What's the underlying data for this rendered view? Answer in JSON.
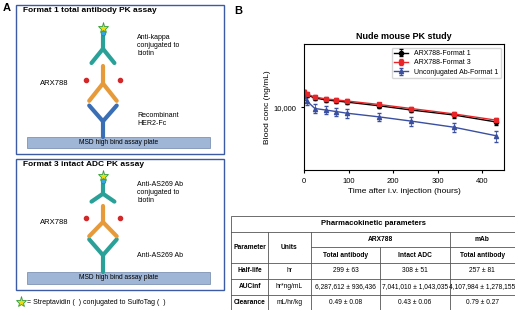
{
  "panel_labels": [
    "A",
    "B"
  ],
  "panel_a": {
    "format1": {
      "title": "Format 1 total antibody PK assay",
      "detection": "Anti-kappa\nconjugated to\nbiotin",
      "adc": "ARX788",
      "capture": "Recombinant\nHER2-Fc",
      "plate": "MSD high bind assay plate"
    },
    "format3": {
      "title": "Format 3 intact ADC PK assay",
      "detection": "Anti-AS269 Ab\nconjugated to\nbiotin",
      "adc": "ARX788",
      "capture": "Anti-AS269 Ab",
      "plate": "MSD high bind assay plate"
    },
    "legend_text": "= Streptavidin (  ) conjugated to SulfoTag (  )"
  },
  "chart_data": {
    "type": "line",
    "title": "Nude mouse PK study",
    "x_label": "Time after i.v. injection (hours)",
    "y_label": "Blood conc (ng/mL)",
    "log": "y",
    "xlim": [
      0,
      450
    ],
    "xticks": [
      0,
      100,
      200,
      300,
      400
    ],
    "ylim": [
      1000,
      100000
    ],
    "yticks": [
      {
        "value": 10000,
        "label": "10,000"
      }
    ],
    "legend": "upper right",
    "x": [
      0.25,
      6,
      24,
      48,
      72,
      96,
      168,
      240,
      336,
      432
    ],
    "series": [
      {
        "name": "ARX788-Format 1",
        "color": "#000000",
        "marker": "circle",
        "values": [
          17000,
          15500,
          14000,
          13000,
          12500,
          12000,
          10500,
          9000,
          7500,
          5800
        ],
        "errors": [
          1500,
          1200,
          1000,
          900,
          900,
          900,
          800,
          700,
          700,
          600
        ]
      },
      {
        "name": "ARX788-Format 3",
        "color": "#e8262a",
        "marker": "square",
        "values": [
          17500,
          16000,
          14500,
          13500,
          13000,
          12500,
          11000,
          9500,
          7800,
          6200
        ],
        "errors": [
          1500,
          1200,
          1000,
          900,
          900,
          900,
          800,
          700,
          700,
          600
        ]
      },
      {
        "name": "Unconjugated Ab-Format 1",
        "color": "#3a4fa0",
        "marker": "triangle",
        "values": [
          15000,
          12500,
          9500,
          9000,
          8500,
          8000,
          7000,
          6000,
          4800,
          3500
        ],
        "errors": [
          2000,
          1800,
          1500,
          1300,
          1200,
          1200,
          1000,
          900,
          800,
          700
        ]
      }
    ]
  },
  "table": {
    "title": "Pharmacokinetic parameters",
    "header": [
      "Parameter",
      "Units",
      "ARX788",
      "mAb"
    ],
    "subheader": [
      "Total antibody",
      "Intact ADC",
      "Total antibody"
    ],
    "rows": [
      [
        "Half-life",
        "hr",
        "299 ± 63",
        "308 ± 51",
        "257 ± 81"
      ],
      [
        "AUCinf",
        "hr*ng/mL",
        "6,287,612 ± 936,436",
        "7,041,010 ± 1,043,035",
        "4,107,984 ± 1,278,155"
      ],
      [
        "Clearance",
        "mL/hr/kg",
        "0.49 ± 0.08",
        "0.43 ± 0.06",
        "0.79 ± 0.27"
      ]
    ]
  }
}
